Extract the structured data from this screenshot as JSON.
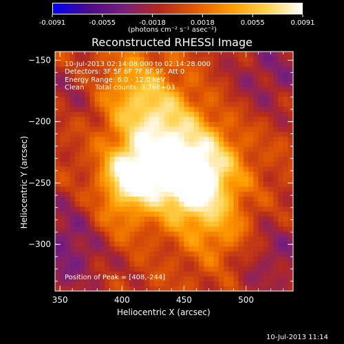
{
  "colorbar": {
    "tick_labels": [
      "-0.0091",
      "-0.0055",
      "-0.0018",
      "0.0018",
      "0.0055",
      "0.0091"
    ],
    "unit_label": "(photons cm⁻² s⁻¹ asec⁻²)",
    "colors": [
      "#0000ff",
      "#4b0a8c",
      "#7a1f7a",
      "#b3291f",
      "#e35a00",
      "#ff9a00",
      "#ffd14a",
      "#ffffff"
    ]
  },
  "plot": {
    "title": "Reconstructed RHESSI Image",
    "xlabel": "Heliocentric X (arcsec)",
    "ylabel": "Heliocentric Y (arcsec)",
    "info_lines": [
      "10-Jul-2013 02:14:08.000 to 02:14:28.000",
      "Detectors: 3F 5F 6F 7F 8F 9F, Att 0",
      "Energy Range: 6.0 - 12.0 keV",
      "Clean     Total counts: 3.79E+03"
    ],
    "peak_label": "Position of Peak = [408,-244]",
    "timestamp": "10-Jul-2013 11:14"
  },
  "chart_data": {
    "type": "heatmap",
    "title": "Reconstructed RHESSI Image",
    "xlabel": "Heliocentric X (arcsec)",
    "ylabel": "Heliocentric Y (arcsec)",
    "xlim": [
      346,
      538
    ],
    "ylim": [
      -338,
      -143
    ],
    "x_ticks": [
      350,
      400,
      450,
      500
    ],
    "y_ticks": [
      -150,
      -200,
      -250,
      -300
    ],
    "color_range": [
      -0.0091,
      0.0091
    ],
    "peak": [
      408,
      -244
    ],
    "sources": [
      {
        "x": 408,
        "y": -244,
        "amp": 0.0091,
        "sigma": 16
      },
      {
        "x": 455,
        "y": -255,
        "amp": 0.0072,
        "sigma": 20
      },
      {
        "x": 440,
        "y": -225,
        "amp": 0.0058,
        "sigma": 26
      },
      {
        "x": 425,
        "y": -195,
        "amp": 0.0042,
        "sigma": 22
      },
      {
        "x": 405,
        "y": -170,
        "amp": 0.0034,
        "sigma": 22
      },
      {
        "x": 480,
        "y": -290,
        "amp": 0.0036,
        "sigma": 20
      },
      {
        "x": 470,
        "y": -235,
        "amp": 0.004,
        "sigma": 22
      },
      {
        "x": 395,
        "y": -280,
        "amp": 0.003,
        "sigma": 18
      }
    ],
    "negative_regions": [
      {
        "x": 358,
        "y": -300,
        "amp": -0.004,
        "sigma": 28
      },
      {
        "x": 520,
        "y": -160,
        "amp": -0.003,
        "sigma": 26
      },
      {
        "x": 522,
        "y": -310,
        "amp": -0.003,
        "sigma": 26
      },
      {
        "x": 365,
        "y": -175,
        "amp": -0.0022,
        "sigma": 20
      }
    ]
  }
}
